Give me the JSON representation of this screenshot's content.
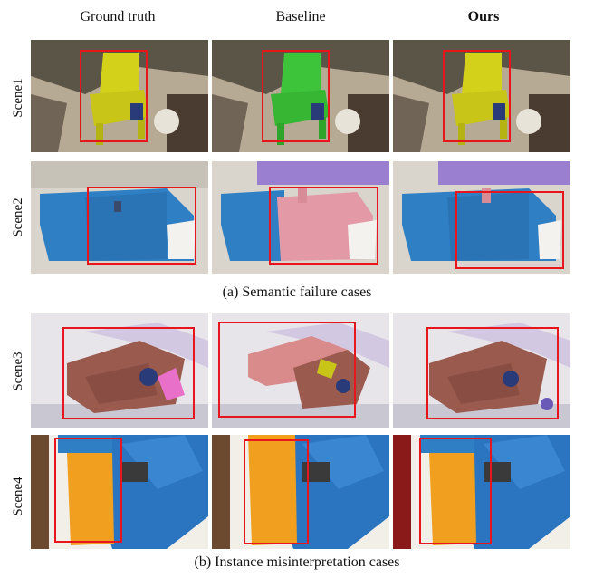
{
  "columns": [
    "Ground truth",
    "Baseline",
    "Ours"
  ],
  "rows": [
    "Scene1",
    "Scene2",
    "Scene3",
    "Scene4"
  ],
  "captions": {
    "a": "(a) Semantic failure cases",
    "b": "(b) Instance misinterpretation cases"
  },
  "colors": {
    "highlight_box": "#e8161c",
    "chair_yellow": "#d4d11a",
    "chair_green": "#3ec43a",
    "cabinet_blue": "#2f7fc4",
    "cabinet_pink": "#e39aa6",
    "sofa_brown": "#9a5a4e",
    "sofa_pink": "#d98a8a",
    "desk_orange": "#f0a01e",
    "wall_blue": "#2b75c0"
  }
}
